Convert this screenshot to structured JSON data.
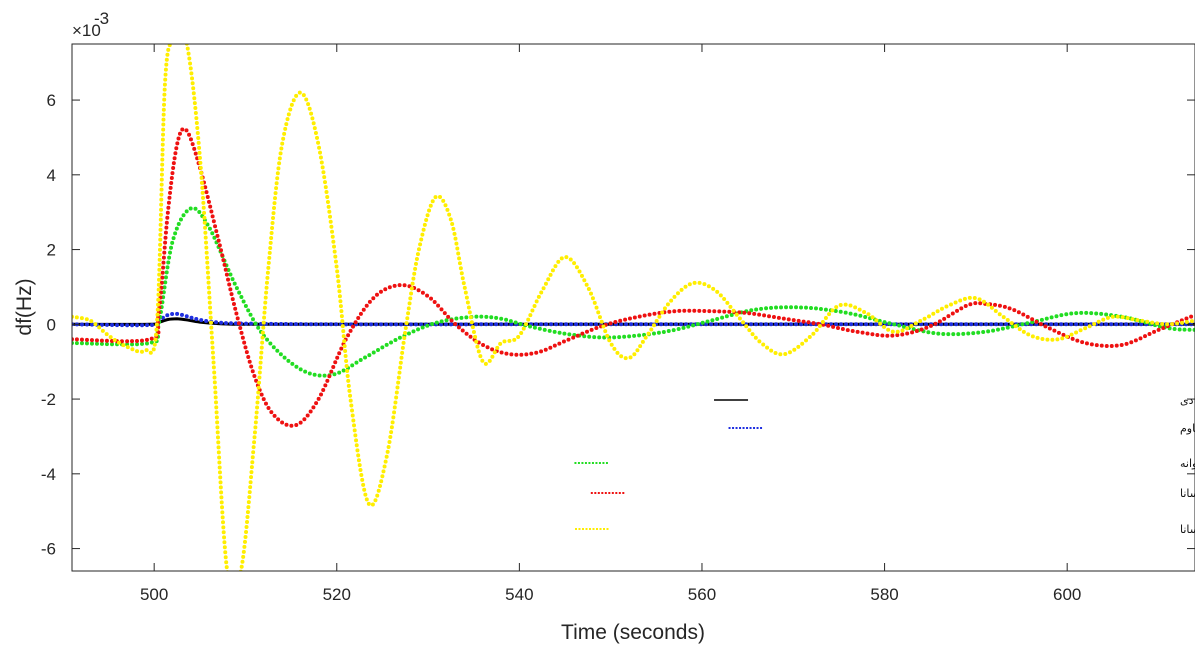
{
  "chart_data": {
    "type": "line",
    "xlabel": "Time (seconds)",
    "ylabel": "df(Hz)",
    "y_multiplier_label": "×10",
    "y_multiplier_exponent": "-3",
    "xlim": [
      491,
      614
    ],
    "ylim": [
      -6.6,
      7.5
    ],
    "xticks": [
      500,
      520,
      540,
      560,
      580,
      600
    ],
    "yticks": [
      -6,
      -4,
      -2,
      0,
      2,
      4,
      6
    ],
    "grid": false,
    "legend_position": "bottom-right",
    "series": [
      {
        "name": "کنترل هماهنگ سیستم کنترل فرکانس-بار و ذخیره ساز ابررسانا مبتنی بر کنترل کننده پیشنهادی",
        "color": "#000000",
        "style": "solid",
        "x": [
          491,
          499.5,
          500.5,
          501.5,
          502.5,
          503.5,
          505,
          507,
          510,
          520,
          540,
          560,
          580,
          600,
          614
        ],
        "y": [
          0,
          0,
          0.05,
          0.13,
          0.15,
          0.12,
          0.06,
          0.02,
          0,
          0,
          0,
          0,
          0,
          0,
          0
        ]
      },
      {
        "name": "کنترل هماهنگ سیستم کنترل فرکانس-بار و ذخیره ساز ابررسانا مبتنی بر کنترل کننده مقاوم",
        "color": "#1f2fe0",
        "style": "dotted",
        "x": [
          491,
          499.5,
          500.5,
          501.5,
          502.5,
          503.5,
          505,
          507,
          510,
          520,
          540,
          560,
          580,
          600,
          614
        ],
        "y": [
          0,
          -0.02,
          0.1,
          0.25,
          0.28,
          0.22,
          0.12,
          0.05,
          0.02,
          0,
          0,
          0,
          0,
          0,
          0
        ]
      },
      {
        "name": "کنترل هماهنگ سیستم کنترل فرکانس-بار و ذخیره ساز ابررسانا مبتنی بر کنترل کننده PID بهینه شده با الگوریتم ازدحام پروانه",
        "color": "#22dd22",
        "style": "dotted",
        "x": [
          491,
          499.5,
          500.5,
          502,
          504,
          506,
          509,
          512,
          516,
          519.5,
          523,
          527,
          531,
          535,
          538,
          541,
          545,
          549,
          553,
          557,
          561,
          566,
          571,
          576,
          581,
          586,
          591,
          596,
          601,
          606,
          611,
          614
        ],
        "y": [
          -0.5,
          -0.5,
          0,
          2.2,
          3.1,
          2.6,
          1.0,
          -0.3,
          -1.2,
          -1.35,
          -0.9,
          -0.35,
          0.05,
          0.2,
          0.15,
          -0.05,
          -0.25,
          -0.35,
          -0.3,
          -0.15,
          0.1,
          0.4,
          0.45,
          0.3,
          0.0,
          -0.25,
          -0.2,
          0.05,
          0.3,
          0.2,
          -0.1,
          -0.15
        ]
      },
      {
        "name": "کنترل فرکانس-بار با استفاده از کنترل کننده PID بهینه شده با الگوریتم ازدحام پروانه با در نظر گرفتن ذخیره ساز ابررسانا",
        "color": "#ee1111",
        "style": "dotted",
        "x": [
          491,
          499.5,
          500.5,
          501.5,
          502.5,
          503.5,
          505,
          507,
          509,
          511,
          513,
          515.5,
          518,
          521,
          524,
          527,
          530,
          533,
          536,
          539,
          542,
          545,
          549,
          553,
          557,
          561,
          565,
          569,
          573,
          577,
          581,
          585,
          589,
          591,
          594,
          598,
          602,
          606,
          610,
          614
        ],
        "y": [
          -0.4,
          -0.4,
          0.3,
          3.0,
          4.8,
          5.2,
          4.2,
          2.3,
          0.3,
          -1.4,
          -2.4,
          -2.7,
          -2.0,
          -0.4,
          0.7,
          1.05,
          0.75,
          0.0,
          -0.55,
          -0.8,
          -0.75,
          -0.45,
          -0.05,
          0.2,
          0.35,
          0.35,
          0.3,
          0.15,
          0.0,
          -0.2,
          -0.3,
          -0.05,
          0.5,
          0.55,
          0.4,
          -0.1,
          -0.5,
          -0.55,
          -0.15,
          0.25
        ]
      },
      {
        "name": "کنترل فرکانس-بار با استفاده از کنترل کننده PID بهینه شده با الگوریتم ازدحام پروانه بدون در نظر گرفتن ذخیره ساز ابررسانا",
        "color": "#ffee00",
        "style": "dotted",
        "x": [
          491,
          493,
          495,
          497,
          499,
          500.3,
          501.2,
          502.2,
          503.5,
          505,
          506.5,
          508,
          509.5,
          511,
          512.5,
          514,
          516,
          518,
          520,
          521.5,
          523.5,
          525.5,
          527.5,
          529,
          530.8,
          532.5,
          534,
          536,
          538,
          540,
          542.5,
          545,
          547.5,
          550,
          552,
          554,
          556.5,
          559,
          561.5,
          564,
          566.5,
          569,
          572,
          575,
          578,
          581,
          584,
          587,
          590,
          593,
          596,
          599,
          602,
          605,
          608,
          611,
          614
        ],
        "y": [
          0.2,
          0.1,
          -0.3,
          -0.6,
          -0.7,
          0.0,
          6.5,
          7.6,
          7.6,
          4.5,
          -1.0,
          -6.6,
          -6.6,
          -3.0,
          1.5,
          4.8,
          6.2,
          4.8,
          1.5,
          -2.0,
          -4.8,
          -3.5,
          -0.2,
          2.0,
          3.4,
          2.8,
          1.0,
          -1.0,
          -0.5,
          -0.3,
          0.9,
          1.8,
          1.0,
          -0.5,
          -0.9,
          -0.3,
          0.6,
          1.1,
          0.9,
          0.2,
          -0.5,
          -0.8,
          -0.3,
          0.5,
          0.3,
          -0.2,
          0.1,
          0.5,
          0.7,
          0.2,
          -0.3,
          -0.4,
          -0.1,
          0.2,
          0.1,
          0.0,
          0.1
        ]
      }
    ]
  }
}
